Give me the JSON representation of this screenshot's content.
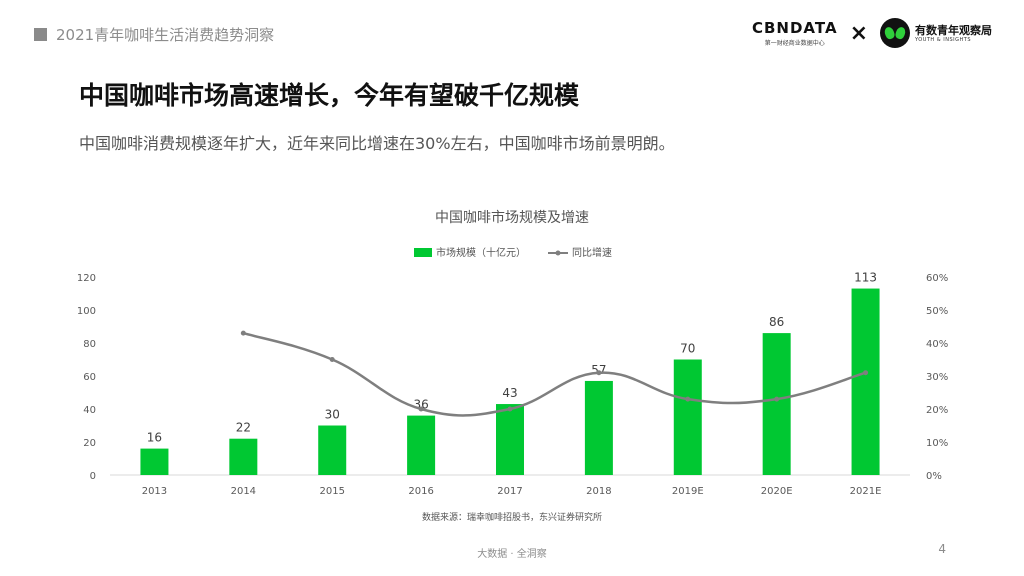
{
  "header": {
    "deck_title": "2021青年咖啡生活消费趋势洞察",
    "logo_cbn": "CBNDATA",
    "logo_cbn_sub": "第一财经商业数据中心",
    "logo_separator": "×",
    "logo_partner": "有数青年观察局",
    "logo_partner_sub": "YOUTH & INSIGHTS"
  },
  "slide": {
    "headline": "中国咖啡市场高速增长，今年有望破千亿规模",
    "subline": "中国咖啡消费规模逐年扩大，近年来同比增速在30%左右，中国咖啡市场前景明朗。"
  },
  "chart_data": {
    "type": "bar",
    "title": "中国咖啡市场规模及增速",
    "categories": [
      "2013",
      "2014",
      "2015",
      "2016",
      "2017",
      "2018",
      "2019E",
      "2020E",
      "2021E"
    ],
    "series": [
      {
        "name": "市场规模（十亿元）",
        "type": "bar",
        "axis": "left",
        "values": [
          16,
          22,
          30,
          36,
          43,
          57,
          70,
          86,
          113
        ],
        "color": "#00c832"
      },
      {
        "name": "同比增速",
        "type": "line",
        "axis": "right",
        "values": [
          null,
          0.43,
          0.35,
          0.2,
          0.2,
          0.31,
          0.23,
          0.23,
          0.31
        ],
        "color": "#7f7f7f"
      }
    ],
    "ylim": [
      0,
      120
    ],
    "yticks": [
      0,
      20,
      40,
      60,
      80,
      100,
      120
    ],
    "y2lim": [
      0,
      0.6
    ],
    "y2ticks": [
      "0%",
      "10%",
      "20%",
      "30%",
      "40%",
      "50%",
      "60%"
    ],
    "legend_position": "top-center",
    "grid": false,
    "source": "数据来源：瑞幸咖啡招股书，东兴证券研究所"
  },
  "footer": {
    "text": "大数据 · 全洞察",
    "page": "4"
  }
}
